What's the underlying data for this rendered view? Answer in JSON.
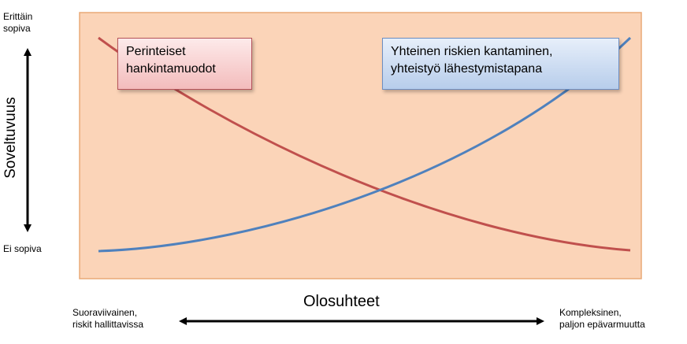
{
  "colors": {
    "plot_bg": "#fbd4b8",
    "plot_border": "#e9a977",
    "red_curve": "#c0504d",
    "blue_curve": "#4f81bd"
  },
  "y_axis": {
    "title": "Soveltuvuus",
    "top_label_line1": "Erittäin",
    "top_label_line2": "sopiva",
    "bottom_label": "Ei sopiva"
  },
  "x_axis": {
    "title": "Olosuhteet",
    "left_label_line1": "Suoraviivainen,",
    "left_label_line2": "riskit hallittavissa",
    "right_label_line1": "Kompleksinen,",
    "right_label_line2": "paljon epävarmuutta"
  },
  "curves": {
    "traditional": {
      "label_line1": "Perinteiset",
      "label_line2": "hankintamuodot",
      "trend": "decreasing",
      "color": "#c0504d"
    },
    "collaborative": {
      "label_line1": "Yhteinen riskien kantaminen,",
      "label_line2": "yhteistyö lähestymistapana",
      "trend": "increasing",
      "color": "#4f81bd"
    }
  }
}
